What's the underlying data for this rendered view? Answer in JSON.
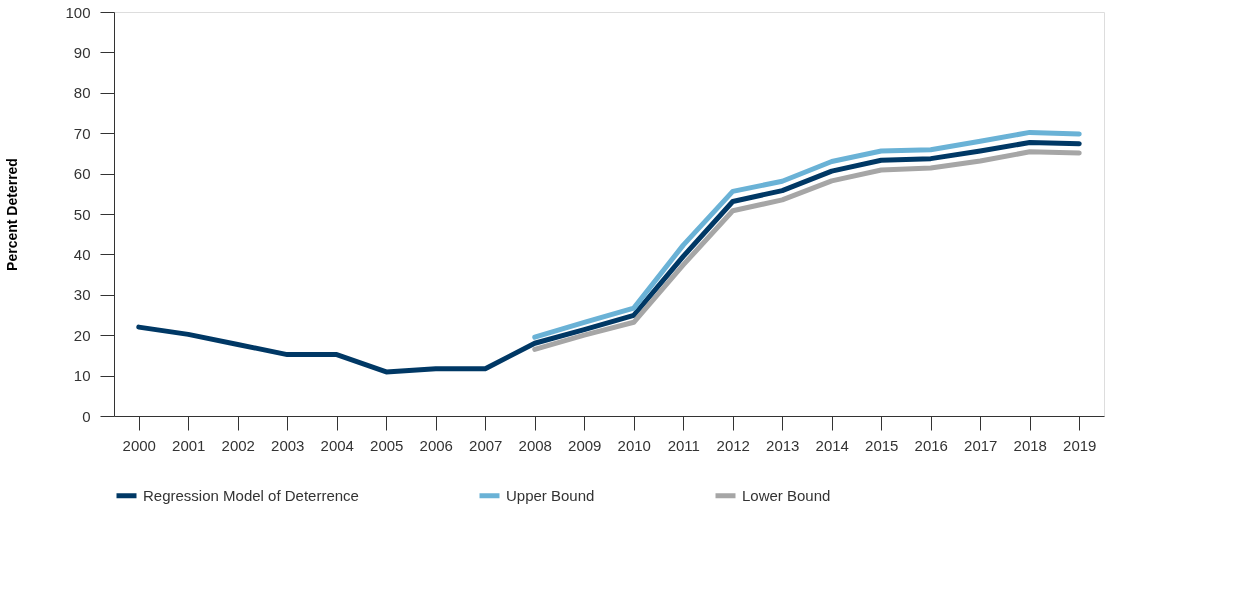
{
  "chart_data": {
    "type": "line",
    "ylabel": "Percent Deterred",
    "categories": [
      "2000",
      "2001",
      "2002",
      "2003",
      "2004",
      "2005",
      "2006",
      "2007",
      "2008",
      "2009",
      "2010",
      "2011",
      "2012",
      "2013",
      "2014",
      "2015",
      "2016",
      "2017",
      "2018",
      "2019"
    ],
    "series": [
      {
        "name": "Regression Model of Deterrence",
        "color": "#003865",
        "values": [
          22.0,
          20.2,
          17.7,
          15.2,
          15.2,
          10.9,
          11.7,
          11.7,
          18.0,
          21.4,
          24.9,
          39.5,
          53.1,
          55.8,
          60.6,
          63.3,
          63.7,
          65.6,
          67.7,
          67.4
        ]
      },
      {
        "name": "Upper Bound",
        "color": "#6ab2d6",
        "values": [
          null,
          null,
          null,
          null,
          null,
          null,
          null,
          null,
          19.5,
          23.2,
          26.7,
          42.3,
          55.6,
          58.1,
          63.0,
          65.6,
          65.9,
          68.0,
          70.2,
          69.8
        ]
      },
      {
        "name": "Lower Bound",
        "color": "#a6a6a6",
        "values": [
          null,
          null,
          null,
          null,
          null,
          null,
          null,
          null,
          16.5,
          20.0,
          23.2,
          37.4,
          50.8,
          53.5,
          58.2,
          60.9,
          61.4,
          63.1,
          65.4,
          65.1
        ]
      }
    ],
    "ylim": [
      0,
      100
    ],
    "yticks": [
      0,
      10,
      20,
      30,
      40,
      50,
      60,
      70,
      80,
      90,
      100
    ],
    "grid": false,
    "legend": "bottom",
    "marker": "none",
    "line_style": "solid"
  }
}
